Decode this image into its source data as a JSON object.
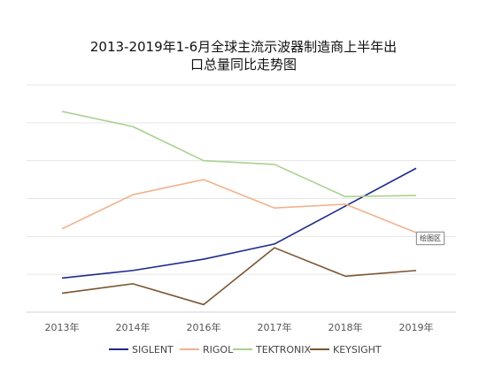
{
  "chart_data": {
    "type": "line",
    "title_line1": "2013-2019年1-6月全球主流示波器制造商上半年出",
    "title_line2": "口总量同比走势图",
    "categories": [
      "2013年",
      "2014年",
      "2016年",
      "2017年",
      "2018年",
      "2019年"
    ],
    "series": [
      {
        "name": "SIGLENT",
        "color": "#1f2a8c",
        "values": [
          0.9,
          1.1,
          1.4,
          1.8,
          2.8,
          3.8
        ]
      },
      {
        "name": "RIGOL",
        "color": "#f0b38e",
        "values": [
          2.2,
          3.1,
          3.5,
          2.75,
          2.85,
          2.1
        ]
      },
      {
        "name": "TEKTRONIX",
        "color": "#a9d18e",
        "values": [
          5.3,
          4.9,
          4.0,
          3.9,
          3.05,
          3.08
        ]
      },
      {
        "name": "KEYSIGHT",
        "color": "#7b5430",
        "values": [
          0.5,
          0.75,
          0.2,
          1.7,
          0.95,
          1.1
        ]
      }
    ],
    "ylim": [
      0,
      6
    ],
    "grid": true,
    "yaxis_labels_shown": false,
    "legend_position": "bottom",
    "annotation": "绘图区"
  }
}
